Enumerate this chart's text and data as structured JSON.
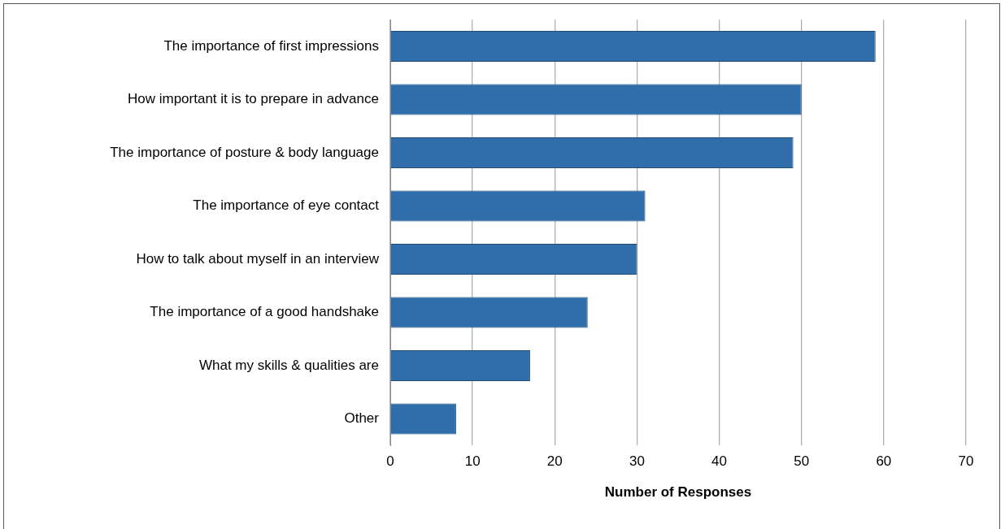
{
  "chart_data": {
    "type": "bar",
    "orientation": "horizontal",
    "xlabel": "Number of Responses",
    "categories": [
      "The importance of first impressions",
      "How important it is to prepare in advance",
      "The importance of posture & body language",
      "The importance of eye contact",
      "How to talk about myself in an interview",
      "The importance of a good handshake",
      "What my skills & qualities are",
      "Other"
    ],
    "values": [
      59,
      50,
      49,
      31,
      30,
      24,
      17,
      8
    ],
    "color": "#2f6dab",
    "xlim": [
      0,
      70
    ],
    "xticks": [
      0,
      10,
      20,
      30,
      40,
      50,
      60,
      70
    ],
    "grid": "x",
    "legend": false
  }
}
